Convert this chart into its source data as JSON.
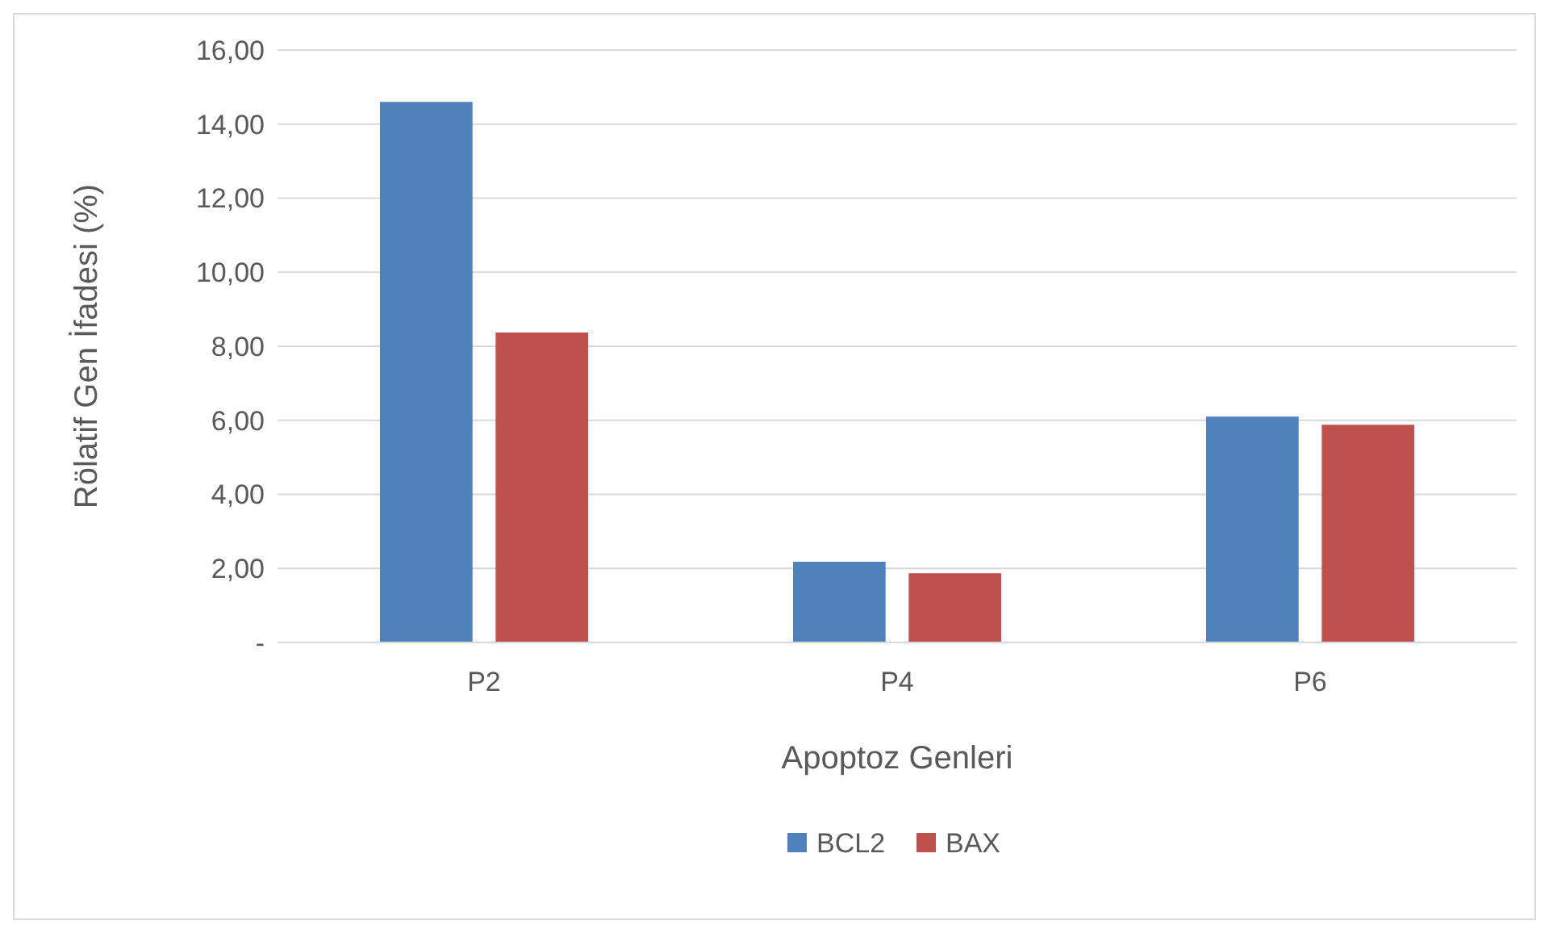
{
  "chart_data": {
    "type": "bar",
    "xlabel": "Apoptoz Genleri",
    "ylabel": "Rölatif Gen İfadesi (%)",
    "categories": [
      "P2",
      "P4",
      "P6"
    ],
    "series": [
      {
        "name": "BCL2",
        "color": "#4f81bd",
        "values": [
          14.6,
          2.18,
          6.1
        ]
      },
      {
        "name": "BAX",
        "color": "#c0504d",
        "values": [
          8.37,
          1.87,
          5.88
        ]
      }
    ],
    "ylim": [
      0,
      16
    ],
    "yticks": [
      {
        "value": 0,
        "label": "-"
      },
      {
        "value": 2,
        "label": "2,00"
      },
      {
        "value": 4,
        "label": "4,00"
      },
      {
        "value": 6,
        "label": "6,00"
      },
      {
        "value": 8,
        "label": "8,00"
      },
      {
        "value": 10,
        "label": "10,00"
      },
      {
        "value": 12,
        "label": "12,00"
      },
      {
        "value": 14,
        "label": "14,00"
      },
      {
        "value": 16,
        "label": "16,00"
      }
    ],
    "grid": "y",
    "legend": "bottom"
  }
}
